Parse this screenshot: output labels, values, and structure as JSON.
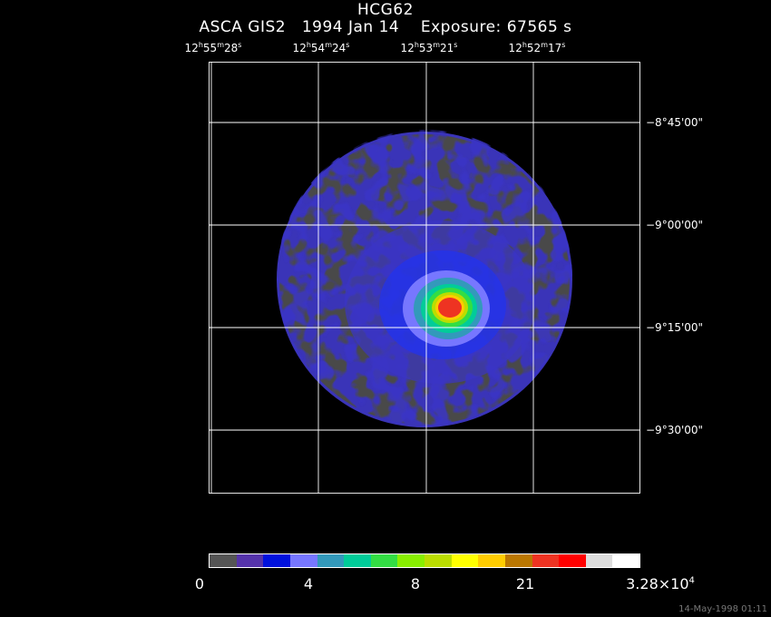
{
  "header": {
    "title": "HCG62",
    "instrument": "ASCA GIS2",
    "date": "1994 Jan 14",
    "exposure": "Exposure: 67565 s"
  },
  "axes": {
    "ra_labels": [
      {
        "h": "12",
        "m": "55",
        "s": "28"
      },
      {
        "h": "12",
        "m": "54",
        "s": "24"
      },
      {
        "h": "12",
        "m": "53",
        "s": "21"
      },
      {
        "h": "12",
        "m": "52",
        "s": "17"
      }
    ],
    "dec_labels": [
      "−8°45'00\"",
      "−9°00'00\"",
      "−9°15'00\"",
      "−9°30'00\""
    ]
  },
  "colorbar": {
    "colors": [
      "#555555",
      "#5533aa",
      "#0011dd",
      "#7777ff",
      "#3399bb",
      "#00cc99",
      "#33dd44",
      "#88ee00",
      "#bbdd00",
      "#ffff00",
      "#ffcc00",
      "#bb7700",
      "#ee3322",
      "#ff0000",
      "#dddddd",
      "#ffffff"
    ],
    "labels": [
      "0",
      "4",
      "8",
      "21"
    ],
    "max_mantissa": "3.28×10",
    "max_exponent": "4"
  },
  "footer": {
    "timestamp": "14-May-1998 01:11"
  }
}
